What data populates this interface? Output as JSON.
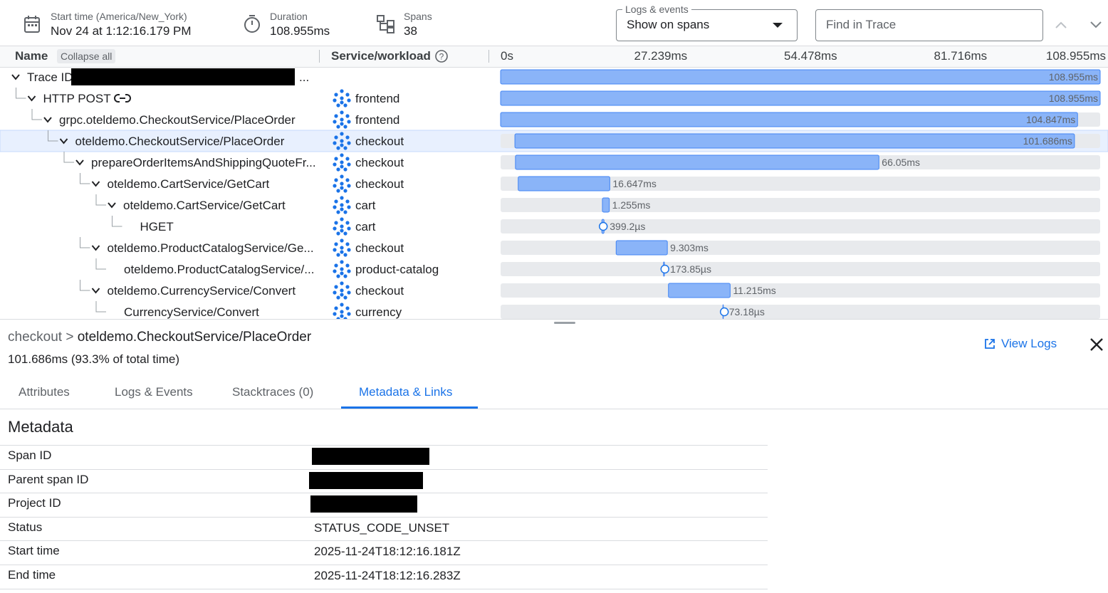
{
  "header": {
    "start_time_label": "Start time (America/New_York)",
    "start_time": "Nov 24 at 1:12:16.179 PM",
    "duration_label": "Duration",
    "duration": "108.955ms",
    "spans_label": "Spans",
    "spans": 38,
    "logs_events_label": "Logs & events",
    "logs_events_value": "Show on spans",
    "find_placeholder": "Find in Trace"
  },
  "columns": {
    "name": "Name",
    "collapse_all": "Collapse all",
    "service": "Service/workload"
  },
  "timeline": {
    "xlim": [
      0,
      108.955
    ],
    "xticks": [
      {
        "value": 0,
        "label": "0s"
      },
      {
        "value": 27.239,
        "label": "27.239ms"
      },
      {
        "value": 54.478,
        "label": "54.478ms"
      },
      {
        "value": 81.716,
        "label": "81.716ms"
      },
      {
        "value": 108.955,
        "label": "108.955ms"
      }
    ]
  },
  "rows": [
    {
      "name": "Trace ID",
      "trailing": "...",
      "start_ms": 0,
      "duration_ms": 108.955,
      "duration_label": "108.955ms"
    },
    {
      "name": "HTTP POST",
      "service": "frontend",
      "start_ms": 0,
      "duration_ms": 108.955,
      "duration_label": "108.955ms"
    },
    {
      "name": "grpc.oteldemo.CheckoutService/PlaceOrder",
      "service": "frontend",
      "start_ms": 0,
      "duration_ms": 104.847,
      "duration_label": "104.847ms"
    },
    {
      "name": "oteldemo.CheckoutService/PlaceOrder",
      "service": "checkout",
      "start_ms": 2.6,
      "duration_ms": 101.686,
      "duration_label": "101.686ms"
    },
    {
      "name": "prepareOrderItemsAndShippingQuoteFr...",
      "service": "checkout",
      "start_ms": 2.7,
      "duration_ms": 66.05,
      "duration_label": "66.05ms"
    },
    {
      "name": "oteldemo.CartService/GetCart",
      "service": "checkout",
      "start_ms": 3.2,
      "duration_ms": 16.647,
      "duration_label": "16.647ms"
    },
    {
      "name": "oteldemo.CartService/GetCart",
      "service": "cart",
      "start_ms": 18.5,
      "duration_ms": 1.255,
      "duration_label": "1.255ms"
    },
    {
      "name": "HGET",
      "service": "cart",
      "start_ms": 18.4,
      "duration_ms": 0.3992,
      "duration_label": "399.2µs"
    },
    {
      "name": "oteldemo.ProductCatalogService/Ge...",
      "service": "checkout",
      "start_ms": 21.0,
      "duration_ms": 9.303,
      "duration_label": "9.303ms"
    },
    {
      "name": "oteldemo.ProductCatalogService/...",
      "service": "product-catalog",
      "start_ms": 29.6,
      "duration_ms": 0.17385,
      "duration_label": "173.85µs"
    },
    {
      "name": "oteldemo.CurrencyService/Convert",
      "service": "checkout",
      "start_ms": 30.5,
      "duration_ms": 11.215,
      "duration_label": "11.215ms"
    },
    {
      "name": "CurrencyService/Convert",
      "service": "currency",
      "start_ms": 40.4,
      "duration_ms": 0.07318,
      "duration_label": "73.18µs"
    }
  ],
  "detail": {
    "service": "checkout",
    "separator": ">",
    "span": "oteldemo.CheckoutService/PlaceOrder",
    "duration": "101.686ms",
    "share": "(93.3% of total time)",
    "view_logs": "View Logs",
    "tabs": [
      "Attributes",
      "Logs & Events",
      "Stacktraces (0)",
      "Metadata & Links"
    ],
    "section_title": "Metadata",
    "metadata": [
      {
        "label": "Span ID"
      },
      {
        "label": "Parent span ID"
      },
      {
        "label": "Project ID"
      },
      {
        "label": "Status",
        "value": "STATUS_CODE_UNSET"
      },
      {
        "label": "Start time",
        "value": "2025-11-24T18:12:16.181Z"
      },
      {
        "label": "End time",
        "value": "2025-11-24T18:12:16.283Z"
      }
    ]
  }
}
